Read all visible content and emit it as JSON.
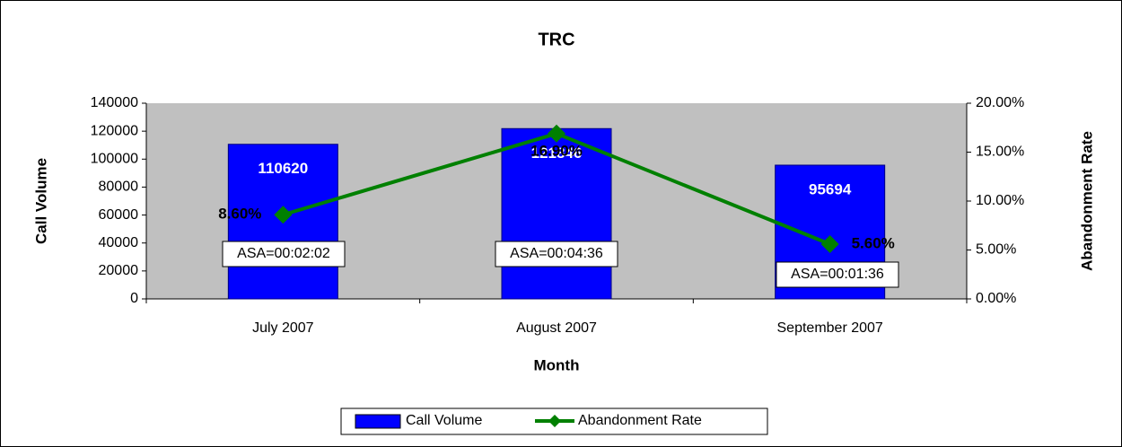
{
  "chart_data": {
    "type": "bar",
    "title": "TRC",
    "x_label": "Month",
    "y_label": "Call Volume",
    "y2_label": "Abandonment Rate",
    "categories": [
      "July 2007",
      "August 2007",
      "September 2007"
    ],
    "series": [
      {
        "name": "Call Volume",
        "type": "bar",
        "color": "#0000ff",
        "values": [
          110620,
          121846,
          95694
        ]
      },
      {
        "name": "Abandonment Rate",
        "type": "line",
        "axis": "y2",
        "color": "#008000",
        "values": [
          8.6,
          16.9,
          5.6
        ],
        "value_labels": [
          "8.60%",
          "16.90%",
          "5.60%"
        ]
      }
    ],
    "annotations": [
      "ASA=00:02:02",
      "ASA=00:04:36",
      "ASA=00:01:36"
    ],
    "ylim": [
      0,
      140000
    ],
    "yticks": [
      0,
      20000,
      40000,
      60000,
      80000,
      100000,
      120000,
      140000
    ],
    "y2lim": [
      0,
      20
    ],
    "y2ticks": [
      {
        "value": 0,
        "label": "0.00%"
      },
      {
        "value": 5,
        "label": "5.00%"
      },
      {
        "value": 10,
        "label": "10.00%"
      },
      {
        "value": 15,
        "label": "15.00%"
      },
      {
        "value": 20,
        "label": "20.00%"
      }
    ],
    "plot_background": "#c0c0c0",
    "legend": "bottom"
  }
}
